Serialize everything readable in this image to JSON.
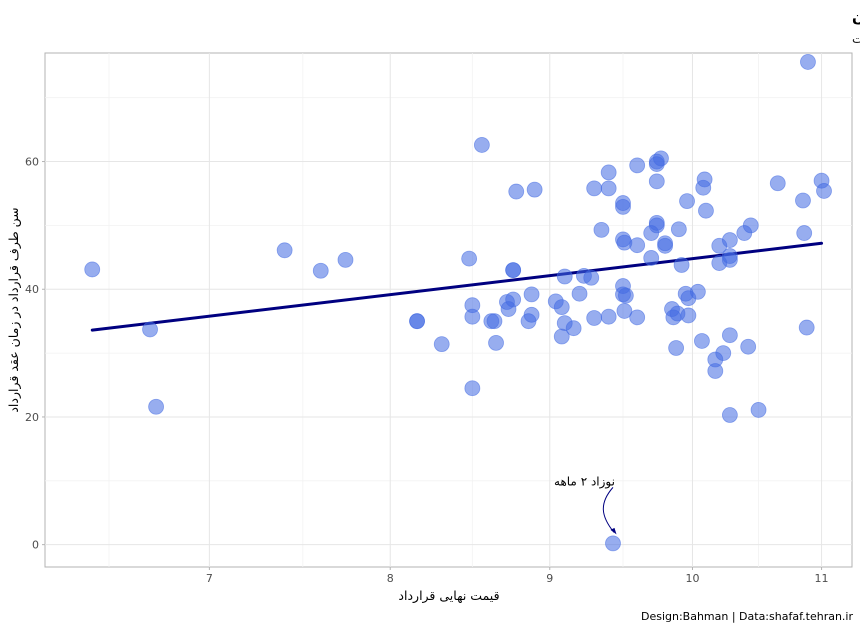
{
  "chart_data": {
    "type": "scatter",
    "title": "پراکندگی سنی طرفهای قرارداد مجموعه شهرداری تهران",
    "subtitle": "محور افقی برای خوانش بهتر در مبنای لگاریتمی نمایش داده شده است",
    "xlabel": "قیمت نهایی قرارداد",
    "ylabel": "سن طرف قرارداد در زمان عقد قرارداد",
    "caption": "Design:Bahman | Data:shafaf.tehran.ir",
    "x_scale": "log10",
    "xlim": [
      6.2,
      11.25
    ],
    "ylim": [
      -3.5,
      77
    ],
    "x_ticks": [
      7,
      8,
      9,
      10,
      11
    ],
    "y_ticks": [
      0,
      20,
      40,
      60
    ],
    "grid": true,
    "point_color": "#4169E1",
    "trend_color": "#000080",
    "trend_line": {
      "x": [
        6.42,
        11.0
      ],
      "y": [
        33.6,
        47.2
      ]
    },
    "annotation": {
      "text": "نوزاد ۲ ماهه",
      "x": 9.43,
      "y": 0.2
    },
    "points": [
      {
        "x": 6.42,
        "y": 43.1
      },
      {
        "x": 6.7,
        "y": 33.7
      },
      {
        "x": 6.73,
        "y": 21.6
      },
      {
        "x": 7.4,
        "y": 46.1
      },
      {
        "x": 7.6,
        "y": 42.9
      },
      {
        "x": 7.74,
        "y": 44.6
      },
      {
        "x": 8.16,
        "y": 35.0
      },
      {
        "x": 8.16,
        "y": 35.0
      },
      {
        "x": 8.31,
        "y": 31.4
      },
      {
        "x": 8.48,
        "y": 44.8
      },
      {
        "x": 8.5,
        "y": 37.5
      },
      {
        "x": 8.5,
        "y": 35.7
      },
      {
        "x": 8.5,
        "y": 24.5
      },
      {
        "x": 8.56,
        "y": 62.6
      },
      {
        "x": 8.62,
        "y": 35.0
      },
      {
        "x": 8.64,
        "y": 35.0
      },
      {
        "x": 8.65,
        "y": 31.6
      },
      {
        "x": 8.72,
        "y": 38.0
      },
      {
        "x": 8.73,
        "y": 36.9
      },
      {
        "x": 8.76,
        "y": 38.4
      },
      {
        "x": 8.76,
        "y": 43.0
      },
      {
        "x": 8.76,
        "y": 43.0
      },
      {
        "x": 8.78,
        "y": 55.3
      },
      {
        "x": 8.86,
        "y": 35.0
      },
      {
        "x": 8.88,
        "y": 36.0
      },
      {
        "x": 8.88,
        "y": 39.2
      },
      {
        "x": 8.9,
        "y": 55.6
      },
      {
        "x": 9.04,
        "y": 38.1
      },
      {
        "x": 9.08,
        "y": 37.2
      },
      {
        "x": 9.08,
        "y": 32.6
      },
      {
        "x": 9.1,
        "y": 34.7
      },
      {
        "x": 9.1,
        "y": 42.0
      },
      {
        "x": 9.16,
        "y": 33.9
      },
      {
        "x": 9.2,
        "y": 39.3
      },
      {
        "x": 9.23,
        "y": 42.1
      },
      {
        "x": 9.28,
        "y": 41.8
      },
      {
        "x": 9.3,
        "y": 35.5
      },
      {
        "x": 9.3,
        "y": 55.8
      },
      {
        "x": 9.35,
        "y": 49.3
      },
      {
        "x": 9.4,
        "y": 35.7
      },
      {
        "x": 9.4,
        "y": 55.8
      },
      {
        "x": 9.4,
        "y": 58.3
      },
      {
        "x": 9.43,
        "y": 0.2
      },
      {
        "x": 9.5,
        "y": 52.9
      },
      {
        "x": 9.5,
        "y": 53.5
      },
      {
        "x": 9.5,
        "y": 47.8
      },
      {
        "x": 9.51,
        "y": 47.3
      },
      {
        "x": 9.5,
        "y": 40.5
      },
      {
        "x": 9.5,
        "y": 39.2
      },
      {
        "x": 9.52,
        "y": 39.0
      },
      {
        "x": 9.51,
        "y": 36.6
      },
      {
        "x": 9.6,
        "y": 35.6
      },
      {
        "x": 9.6,
        "y": 46.9
      },
      {
        "x": 9.6,
        "y": 59.4
      },
      {
        "x": 9.7,
        "y": 44.9
      },
      {
        "x": 9.7,
        "y": 48.8
      },
      {
        "x": 9.74,
        "y": 50.0
      },
      {
        "x": 9.74,
        "y": 50.4
      },
      {
        "x": 9.74,
        "y": 56.9
      },
      {
        "x": 9.74,
        "y": 59.6
      },
      {
        "x": 9.74,
        "y": 60.0
      },
      {
        "x": 9.77,
        "y": 60.5
      },
      {
        "x": 9.8,
        "y": 47.2
      },
      {
        "x": 9.8,
        "y": 46.8
      },
      {
        "x": 9.85,
        "y": 36.9
      },
      {
        "x": 9.86,
        "y": 35.6
      },
      {
        "x": 9.88,
        "y": 30.8
      },
      {
        "x": 9.89,
        "y": 36.2
      },
      {
        "x": 9.9,
        "y": 49.4
      },
      {
        "x": 9.92,
        "y": 43.8
      },
      {
        "x": 9.95,
        "y": 39.3
      },
      {
        "x": 9.96,
        "y": 53.8
      },
      {
        "x": 9.97,
        "y": 35.9
      },
      {
        "x": 9.97,
        "y": 38.6
      },
      {
        "x": 10.04,
        "y": 39.6
      },
      {
        "x": 10.07,
        "y": 31.9
      },
      {
        "x": 10.08,
        "y": 55.9
      },
      {
        "x": 10.09,
        "y": 57.2
      },
      {
        "x": 10.1,
        "y": 52.3
      },
      {
        "x": 10.17,
        "y": 27.2
      },
      {
        "x": 10.17,
        "y": 29.0
      },
      {
        "x": 10.2,
        "y": 44.1
      },
      {
        "x": 10.2,
        "y": 46.8
      },
      {
        "x": 10.23,
        "y": 30.0
      },
      {
        "x": 10.28,
        "y": 20.3
      },
      {
        "x": 10.28,
        "y": 32.8
      },
      {
        "x": 10.28,
        "y": 44.6
      },
      {
        "x": 10.28,
        "y": 45.2
      },
      {
        "x": 10.28,
        "y": 47.7
      },
      {
        "x": 10.39,
        "y": 48.8
      },
      {
        "x": 10.42,
        "y": 31.0
      },
      {
        "x": 10.44,
        "y": 50.0
      },
      {
        "x": 10.5,
        "y": 21.1
      },
      {
        "x": 10.65,
        "y": 56.6
      },
      {
        "x": 10.85,
        "y": 53.9
      },
      {
        "x": 10.86,
        "y": 48.8
      },
      {
        "x": 10.88,
        "y": 34.0
      },
      {
        "x": 10.89,
        "y": 75.6
      },
      {
        "x": 11.0,
        "y": 57.0
      },
      {
        "x": 11.02,
        "y": 55.4
      }
    ]
  }
}
